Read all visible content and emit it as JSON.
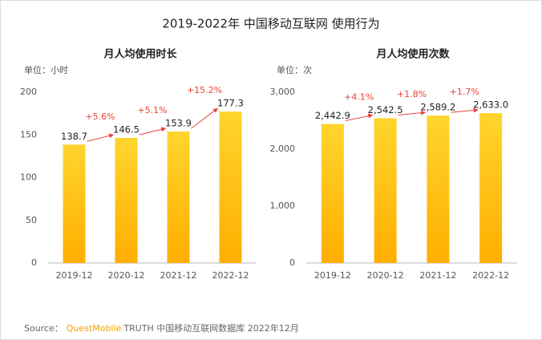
{
  "title": "2019-2022年 中国移动互联网 使用行为",
  "chart_data": [
    {
      "type": "bar",
      "title": "月人均使用时长",
      "unit": "单位：小时",
      "categories": [
        "2019-12",
        "2020-12",
        "2021-12",
        "2022-12"
      ],
      "values": [
        138.7,
        146.5,
        153.9,
        177.3
      ],
      "annotations": [
        "+5.6%",
        "+5.1%",
        "+15.2%"
      ],
      "color": "#FFC21A",
      "ylim": [
        0,
        200
      ],
      "yticks": [
        0,
        50,
        100,
        150,
        200
      ],
      "grid": false
    },
    {
      "type": "bar",
      "title": "月人均使用次数",
      "unit": "单位：次",
      "categories": [
        "2019-12",
        "2020-12",
        "2021-12",
        "2022-12"
      ],
      "values": [
        2442.9,
        2542.5,
        2589.2,
        2633.0
      ],
      "value_labels": [
        "2,442.9",
        "2,542.5",
        "2,589.2",
        "2,633.0"
      ],
      "annotations": [
        "+4.1%",
        "+1.8%",
        "+1.7%"
      ],
      "color": "#FFC21A",
      "ylim": [
        0,
        3000
      ],
      "yticks": [
        0,
        {
          "value": 1000,
          "label": "1,000"
        },
        {
          "value": 2000,
          "label": "2,000"
        },
        {
          "value": 3000,
          "label": "3,000"
        }
      ],
      "grid": false
    }
  ],
  "source": {
    "label": "Source：",
    "brand": "QuestMobile",
    "text": "TRUTH 中国移动互联网数据库 2022年12月"
  }
}
